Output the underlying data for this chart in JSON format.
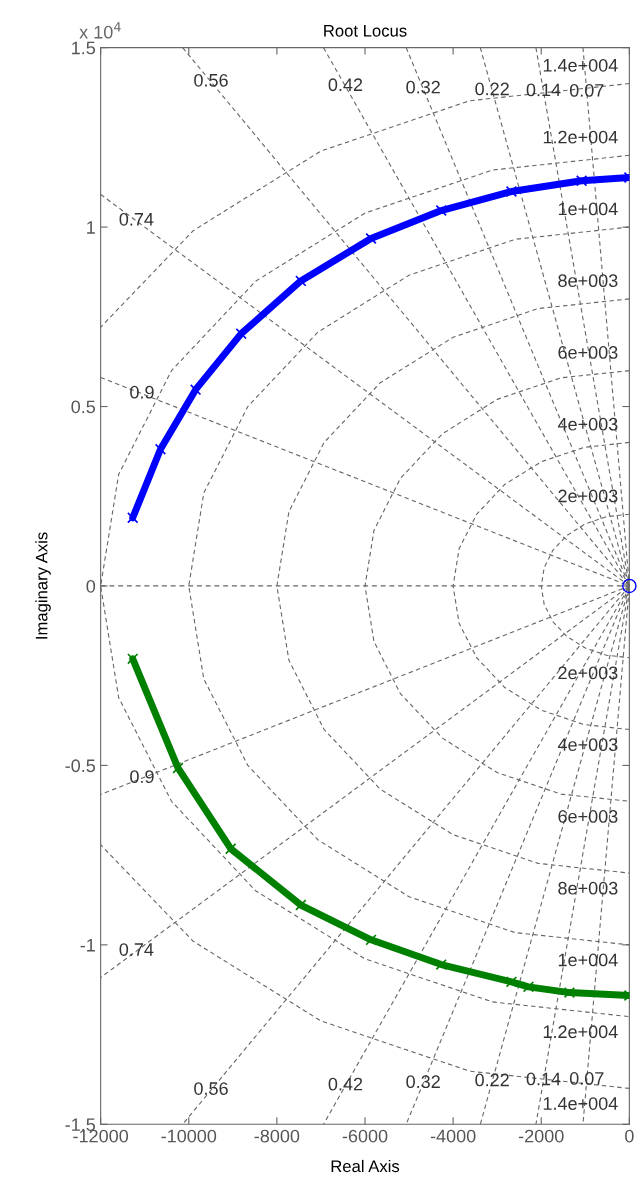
{
  "chart_data": {
    "type": "line",
    "title": "Root Locus",
    "xlabel": "Real Axis",
    "ylabel": "Imaginary Axis",
    "xlim": [
      -12000,
      0
    ],
    "xticks": [
      -12000,
      -10000,
      -8000,
      -6000,
      -4000,
      -2000,
      0
    ],
    "ylim": [
      -1.5,
      1.5
    ],
    "yticks": [
      -1.5,
      -1,
      -0.5,
      0,
      0.5,
      1,
      1.5
    ],
    "ref_lines": [
      {
        "axis": "y",
        "value": 0,
        "color": "#666666",
        "line_style": "dashed"
      }
    ],
    "series": [
      {
        "color": "#666666",
        "line_style": "dashed",
        "x": [
          0,
          -518,
          -1000,
          -1414,
          -1732,
          -1932,
          -2000,
          -1932,
          -1732,
          -1414,
          -1000,
          -518,
          0
        ],
        "values": [
          0.2,
          0.193,
          0.173,
          0.141,
          0.1,
          0.052,
          0,
          -0.052,
          -0.1,
          -0.141,
          -0.173,
          -0.193,
          -0.2
        ]
      },
      {
        "color": "#666666",
        "line_style": "dashed",
        "x": [
          0,
          -1035,
          -2000,
          -2828,
          -3464,
          -3864,
          -4000,
          -3864,
          -3464,
          -2828,
          -2000,
          -1035,
          0
        ],
        "values": [
          0.4,
          0.386,
          0.346,
          0.283,
          0.2,
          0.104,
          0,
          -0.104,
          -0.2,
          -0.283,
          -0.346,
          -0.386,
          -0.4
        ]
      },
      {
        "color": "#666666",
        "line_style": "dashed",
        "x": [
          0,
          -1553,
          -3000,
          -4243,
          -5196,
          -5796,
          -6000,
          -5796,
          -5196,
          -4243,
          -3000,
          -1553,
          0
        ],
        "values": [
          0.6,
          0.58,
          0.52,
          0.424,
          0.3,
          0.155,
          0,
          -0.155,
          -0.3,
          -0.424,
          -0.52,
          -0.58,
          -0.6
        ]
      },
      {
        "color": "#666666",
        "line_style": "dashed",
        "x": [
          0,
          -2071,
          -4000,
          -5657,
          -6928,
          -7727,
          -8000,
          -7727,
          -6928,
          -5657,
          -4000,
          -2071,
          0
        ],
        "values": [
          0.8,
          0.773,
          0.693,
          0.566,
          0.4,
          0.207,
          0,
          -0.207,
          -0.4,
          -0.566,
          -0.693,
          -0.773,
          -0.8
        ]
      },
      {
        "color": "#666666",
        "line_style": "dashed",
        "x": [
          0,
          -2588,
          -5000,
          -7071,
          -8660,
          -9659,
          -10000,
          -9659,
          -8660,
          -7071,
          -5000,
          -2588,
          0
        ],
        "values": [
          1,
          0.966,
          0.866,
          0.707,
          0.5,
          0.259,
          0,
          -0.259,
          -0.5,
          -0.707,
          -0.866,
          -0.966,
          -1
        ]
      },
      {
        "color": "#666666",
        "line_style": "dashed",
        "x": [
          0,
          -3106,
          -6000,
          -8485,
          -10392,
          -11591,
          -12000,
          -11591,
          -10392,
          -8485,
          -6000,
          -3106,
          0
        ],
        "values": [
          1.2,
          1.159,
          1.039,
          0.849,
          0.6,
          0.311,
          0,
          -0.311,
          -0.6,
          -0.849,
          -1.039,
          -1.159,
          -1.2
        ]
      },
      {
        "color": "#666666",
        "line_style": "dashed",
        "x": [
          0,
          -3623,
          -7000,
          -9899,
          -12000
        ],
        "values": [
          1.4,
          1.352,
          1.212,
          0.99,
          0.721
        ]
      },
      {
        "color": "#666666",
        "line_style": "dashed",
        "x": [
          0,
          -3623,
          -7000,
          -9899,
          -12000
        ],
        "values": [
          -1.4,
          -1.352,
          -1.212,
          -0.99,
          -0.721
        ]
      },
      {
        "color": "#666666",
        "line_style": "dashed",
        "x": [
          -1053,
          0,
          -1053
        ],
        "values": [
          1.5,
          0,
          -1.5
        ]
      },
      {
        "color": "#666666",
        "line_style": "dashed",
        "x": [
          -2121,
          0,
          -2121
        ],
        "values": [
          1.5,
          0,
          -1.5
        ]
      },
      {
        "color": "#666666",
        "line_style": "dashed",
        "x": [
          -3383,
          0,
          -3383
        ],
        "values": [
          1.5,
          0,
          -1.5
        ]
      },
      {
        "color": "#666666",
        "line_style": "dashed",
        "x": [
          -5066,
          0,
          -5066
        ],
        "values": [
          1.5,
          0,
          -1.5
        ]
      },
      {
        "color": "#666666",
        "line_style": "dashed",
        "x": [
          -6942,
          0,
          -6942
        ],
        "values": [
          1.5,
          0,
          -1.5
        ]
      },
      {
        "color": "#666666",
        "line_style": "dashed",
        "x": [
          -10139,
          0,
          -10139
        ],
        "values": [
          1.5,
          0,
          -1.5
        ]
      },
      {
        "color": "#666666",
        "line_style": "dashed",
        "x": [
          -12000,
          0,
          -12000
        ],
        "values": [
          1.091,
          0,
          -1.091
        ]
      },
      {
        "color": "#666666",
        "line_style": "dashed",
        "x": [
          -12000,
          0,
          -12000
        ],
        "values": [
          0.581,
          0,
          -0.581
        ]
      },
      {
        "color": "#0000ff",
        "line_style": "solid",
        "marker": "cross",
        "x": [
          -11272,
          -10642,
          -9845,
          -8810,
          -7457,
          -5863,
          -4270,
          -2676,
          -1084,
          0
        ],
        "values": [
          0.19,
          0.381,
          0.547,
          0.703,
          0.85,
          0.968,
          1.046,
          1.099,
          1.129,
          1.138
        ]
      },
      {
        "color": "#008000",
        "line_style": "solid",
        "marker": "cross",
        "x": [
          -11272,
          -10245,
          -9048,
          -7457,
          -5863,
          -4270,
          -2676,
          -2290,
          -1360,
          0
        ],
        "values": [
          -0.203,
          -0.507,
          -0.732,
          -0.889,
          -0.986,
          -1.055,
          -1.103,
          -1.117,
          -1.133,
          -1.141
        ]
      },
      {
        "type": "scatter",
        "color": "#0000ff",
        "marker": "circle",
        "x": [
          0
        ],
        "values": [
          0
        ]
      }
    ],
    "annotations": [
      "x 10$^{4}$",
      {
        "text": "2e+003",
        "x": 0,
        "y": 0.2
      },
      {
        "text": "2e+003",
        "x": 0,
        "y": -0.2
      },
      {
        "text": "4e+003",
        "x": 0,
        "y": 0.4
      },
      {
        "text": "4e+003",
        "x": 0,
        "y": -0.4
      },
      {
        "text": "6e+003",
        "x": 0,
        "y": 0.6
      },
      {
        "text": "6e+003",
        "x": 0,
        "y": -0.6
      },
      {
        "text": "8e+003",
        "x": 0,
        "y": 0.8
      },
      {
        "text": "8e+003",
        "x": 0,
        "y": -0.8
      },
      {
        "text": "1e+004",
        "x": 0,
        "y": 1
      },
      {
        "text": "1e+004",
        "x": 0,
        "y": -1
      },
      {
        "text": "1.2e+004",
        "x": 0,
        "y": 1.2
      },
      {
        "text": "1.2e+004",
        "x": 0,
        "y": -1.2
      },
      {
        "text": "1.4e+004",
        "x": 0,
        "y": 1.4
      },
      {
        "text": "1.4e+004",
        "x": 0,
        "y": -1.4
      },
      {
        "text": "0.07",
        "x": -1053,
        "y": 1.5
      },
      {
        "text": "0.14",
        "x": -2121,
        "y": 1.5
      },
      {
        "text": "0.22",
        "x": -3383,
        "y": 1.5
      },
      {
        "text": "0.32",
        "x": -5066,
        "y": 1.5
      },
      {
        "text": "0.42",
        "x": -6942,
        "y": 1.5
      },
      {
        "text": "0.56",
        "x": -10139,
        "y": 1.5
      },
      {
        "text": "0.74",
        "x": -12000,
        "y": 1.091
      },
      {
        "text": "0.9",
        "x": -12000,
        "y": 0.581
      },
      {
        "text": "0.07",
        "x": -1053,
        "y": -1.5
      },
      {
        "text": "0.14",
        "x": -2121,
        "y": -1.5
      },
      {
        "text": "0.22",
        "x": -3383,
        "y": -1.5
      },
      {
        "text": "0.32",
        "x": -5066,
        "y": -1.5
      },
      {
        "text": "0.42",
        "x": -6942,
        "y": -1.5
      },
      {
        "text": "0.56",
        "x": -10139,
        "y": -1.5
      },
      {
        "text": "0.74",
        "x": -12000,
        "y": -1.091
      },
      {
        "text": "0.9",
        "x": -12000,
        "y": -0.581
      }
    ]
  }
}
